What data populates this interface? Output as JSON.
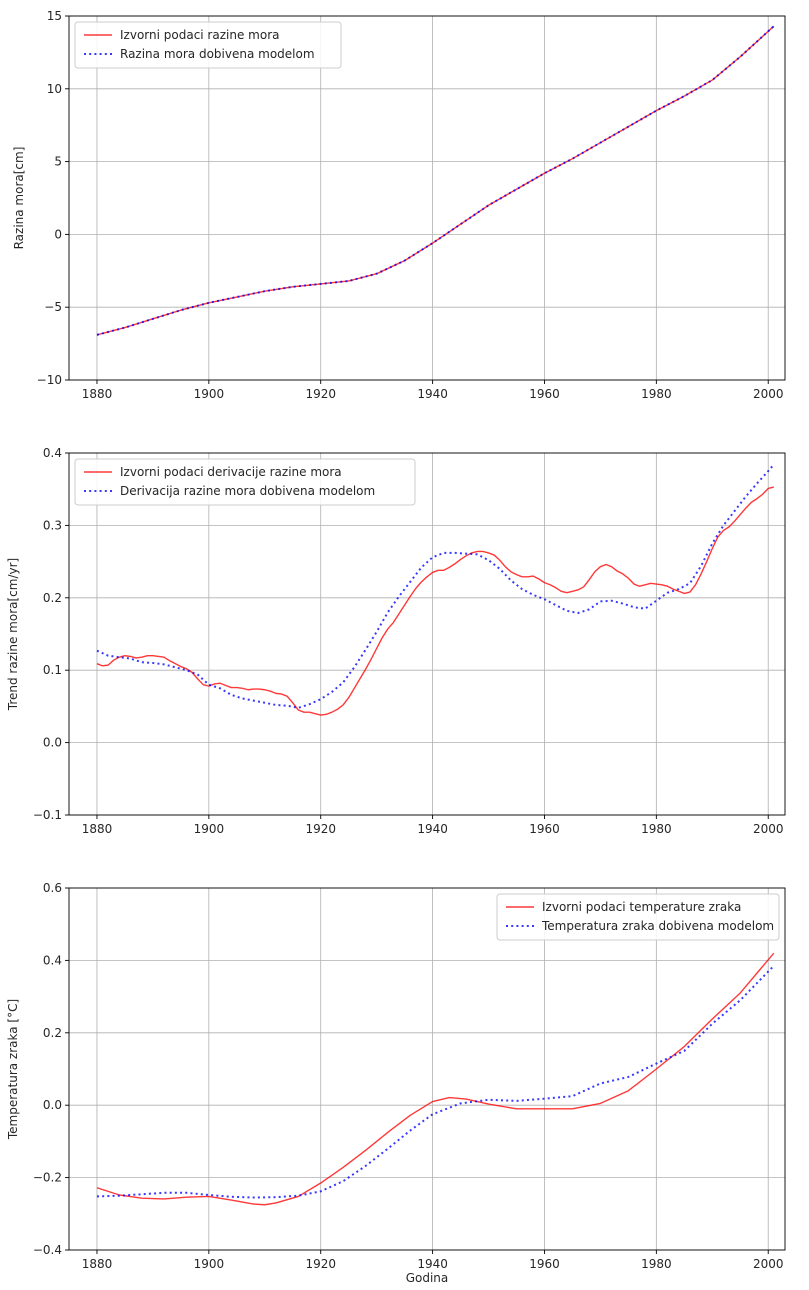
{
  "chart_data": [
    {
      "type": "line",
      "title": "",
      "xlabel": "",
      "ylabel": "Razina mora[cm]",
      "xlim": [
        1875,
        2003
      ],
      "ylim": [
        -10,
        15
      ],
      "xticks": [
        1880,
        1900,
        1920,
        1940,
        1960,
        1980,
        2000
      ],
      "yticks": [
        -10,
        -5,
        0,
        5,
        10,
        15
      ],
      "ytick_labels": [
        "−10",
        "−5",
        "0",
        "5",
        "10",
        "15"
      ],
      "grid": true,
      "legend": "top-left",
      "series": [
        {
          "name": "Izvorni podaci razine mora",
          "color": "#ff0000",
          "style": "solid",
          "x": [
            1880,
            1885,
            1890,
            1895,
            1900,
            1905,
            1910,
            1915,
            1920,
            1925,
            1930,
            1935,
            1940,
            1945,
            1950,
            1955,
            1960,
            1965,
            1970,
            1975,
            1980,
            1985,
            1990,
            1995,
            2001
          ],
          "y": [
            -6.9,
            -6.4,
            -5.8,
            -5.2,
            -4.7,
            -4.3,
            -3.9,
            -3.6,
            -3.4,
            -3.2,
            -2.7,
            -1.8,
            -0.6,
            0.7,
            2.0,
            3.1,
            4.2,
            5.2,
            6.3,
            7.4,
            8.5,
            9.5,
            10.6,
            12.2,
            14.3
          ]
        },
        {
          "name": "Razina mora dobivena modelom",
          "color": "#0000ff",
          "style": "dotted",
          "x": [
            1880,
            1885,
            1890,
            1895,
            1900,
            1905,
            1910,
            1915,
            1920,
            1925,
            1930,
            1935,
            1940,
            1945,
            1950,
            1955,
            1960,
            1965,
            1970,
            1975,
            1980,
            1985,
            1990,
            1995,
            2001
          ],
          "y": [
            -6.9,
            -6.4,
            -5.8,
            -5.2,
            -4.7,
            -4.3,
            -3.9,
            -3.6,
            -3.4,
            -3.2,
            -2.7,
            -1.8,
            -0.6,
            0.7,
            2.0,
            3.1,
            4.2,
            5.2,
            6.3,
            7.4,
            8.5,
            9.5,
            10.6,
            12.2,
            14.3
          ]
        }
      ]
    },
    {
      "type": "line",
      "title": "",
      "xlabel": "",
      "ylabel": "Trend razine mora[cm/yr]",
      "xlim": [
        1875,
        2003
      ],
      "ylim": [
        -0.1,
        0.4
      ],
      "xticks": [
        1880,
        1900,
        1920,
        1940,
        1960,
        1980,
        2000
      ],
      "yticks": [
        -0.1,
        0.0,
        0.1,
        0.2,
        0.3,
        0.4
      ],
      "ytick_labels": [
        "−0.1",
        "0.0",
        "0.1",
        "0.2",
        "0.3",
        "0.4"
      ],
      "grid": true,
      "legend": "top-left",
      "series": [
        {
          "name": "Izvorni podaci derivacije razine mora",
          "color": "#ff0000",
          "style": "solid",
          "x": [
            1880,
            1881,
            1882,
            1883,
            1884,
            1885,
            1886,
            1887,
            1888,
            1889,
            1890,
            1891,
            1892,
            1893,
            1894,
            1895,
            1896,
            1897,
            1898,
            1899,
            1900,
            1901,
            1902,
            1903,
            1904,
            1905,
            1906,
            1907,
            1908,
            1909,
            1910,
            1911,
            1912,
            1913,
            1914,
            1915,
            1916,
            1917,
            1918,
            1919,
            1920,
            1921,
            1922,
            1923,
            1924,
            1925,
            1926,
            1927,
            1928,
            1929,
            1930,
            1931,
            1932,
            1933,
            1934,
            1935,
            1936,
            1937,
            1938,
            1939,
            1940,
            1941,
            1942,
            1943,
            1944,
            1945,
            1946,
            1947,
            1948,
            1949,
            1950,
            1951,
            1952,
            1953,
            1954,
            1955,
            1956,
            1957,
            1958,
            1959,
            1960,
            1961,
            1962,
            1963,
            1964,
            1965,
            1966,
            1967,
            1968,
            1969,
            1970,
            1971,
            1972,
            1973,
            1974,
            1975,
            1976,
            1977,
            1978,
            1979,
            1980,
            1981,
            1982,
            1983,
            1984,
            1985,
            1986,
            1987,
            1988,
            1989,
            1990,
            1991,
            1992,
            1993,
            1994,
            1995,
            1996,
            1997,
            1998,
            1999,
            2000,
            2001
          ],
          "y": [
            0.109,
            0.106,
            0.107,
            0.114,
            0.118,
            0.12,
            0.119,
            0.117,
            0.118,
            0.12,
            0.12,
            0.119,
            0.118,
            0.113,
            0.109,
            0.105,
            0.102,
            0.097,
            0.088,
            0.08,
            0.078,
            0.081,
            0.082,
            0.079,
            0.076,
            0.076,
            0.075,
            0.073,
            0.074,
            0.074,
            0.073,
            0.071,
            0.068,
            0.067,
            0.064,
            0.055,
            0.045,
            0.042,
            0.042,
            0.04,
            0.038,
            0.039,
            0.042,
            0.046,
            0.052,
            0.062,
            0.075,
            0.088,
            0.101,
            0.115,
            0.13,
            0.145,
            0.157,
            0.166,
            0.178,
            0.19,
            0.202,
            0.213,
            0.222,
            0.229,
            0.235,
            0.238,
            0.238,
            0.242,
            0.247,
            0.253,
            0.258,
            0.262,
            0.264,
            0.264,
            0.262,
            0.259,
            0.252,
            0.243,
            0.236,
            0.232,
            0.229,
            0.229,
            0.23,
            0.226,
            0.221,
            0.218,
            0.214,
            0.209,
            0.207,
            0.209,
            0.211,
            0.215,
            0.225,
            0.236,
            0.243,
            0.246,
            0.243,
            0.237,
            0.233,
            0.227,
            0.219,
            0.216,
            0.218,
            0.22,
            0.219,
            0.218,
            0.216,
            0.212,
            0.209,
            0.206,
            0.208,
            0.218,
            0.233,
            0.25,
            0.268,
            0.284,
            0.293,
            0.298,
            0.306,
            0.315,
            0.324,
            0.332,
            0.337,
            0.343,
            0.351,
            0.353
          ]
        },
        {
          "name": "Derivacija razine mora dobivena modelom",
          "color": "#0000ff",
          "style": "dotted",
          "x": [
            1880,
            1882,
            1884,
            1886,
            1888,
            1890,
            1892,
            1894,
            1896,
            1898,
            1900,
            1902,
            1904,
            1906,
            1908,
            1910,
            1912,
            1914,
            1916,
            1918,
            1920,
            1922,
            1924,
            1926,
            1928,
            1930,
            1932,
            1934,
            1936,
            1938,
            1940,
            1942,
            1944,
            1946,
            1948,
            1950,
            1952,
            1954,
            1956,
            1958,
            1960,
            1962,
            1964,
            1966,
            1968,
            1970,
            1972,
            1974,
            1976,
            1978,
            1980,
            1982,
            1984,
            1986,
            1988,
            1990,
            1992,
            1994,
            1996,
            1998,
            2000,
            2001
          ],
          "y": [
            0.127,
            0.12,
            0.118,
            0.116,
            0.111,
            0.11,
            0.108,
            0.104,
            0.1,
            0.094,
            0.08,
            0.075,
            0.066,
            0.061,
            0.058,
            0.055,
            0.052,
            0.051,
            0.048,
            0.053,
            0.06,
            0.07,
            0.083,
            0.104,
            0.128,
            0.153,
            0.18,
            0.202,
            0.222,
            0.242,
            0.256,
            0.262,
            0.262,
            0.261,
            0.26,
            0.252,
            0.24,
            0.224,
            0.212,
            0.204,
            0.198,
            0.19,
            0.182,
            0.179,
            0.184,
            0.195,
            0.196,
            0.192,
            0.187,
            0.185,
            0.196,
            0.207,
            0.212,
            0.22,
            0.244,
            0.275,
            0.3,
            0.32,
            0.34,
            0.358,
            0.375,
            0.384
          ]
        }
      ]
    },
    {
      "type": "line",
      "title": "",
      "xlabel": "Godina",
      "ylabel": "Temperatura zraka [°C]",
      "xlim": [
        1875,
        2003
      ],
      "ylim": [
        -0.4,
        0.6
      ],
      "xticks": [
        1880,
        1900,
        1920,
        1940,
        1960,
        1980,
        2000
      ],
      "yticks": [
        -0.4,
        -0.2,
        0.0,
        0.2,
        0.4,
        0.6
      ],
      "ytick_labels": [
        "−0.4",
        "−0.2",
        "0.0",
        "0.2",
        "0.4",
        "0.6"
      ],
      "grid": true,
      "legend": "top-right",
      "series": [
        {
          "name": "Izvorni podaci temperature zraka",
          "color": "#ff0000",
          "style": "solid",
          "x": [
            1880,
            1884,
            1888,
            1892,
            1896,
            1900,
            1904,
            1908,
            1910,
            1912,
            1916,
            1920,
            1924,
            1928,
            1932,
            1936,
            1940,
            1943,
            1946,
            1950,
            1955,
            1960,
            1965,
            1970,
            1975,
            1980,
            1985,
            1990,
            1995,
            2001
          ],
          "y": [
            -0.228,
            -0.248,
            -0.257,
            -0.259,
            -0.254,
            -0.252,
            -0.262,
            -0.273,
            -0.275,
            -0.27,
            -0.252,
            -0.215,
            -0.172,
            -0.125,
            -0.075,
            -0.028,
            0.01,
            0.021,
            0.017,
            0.003,
            -0.01,
            -0.01,
            -0.01,
            0.005,
            0.04,
            0.1,
            0.162,
            0.238,
            0.31,
            0.42
          ]
        },
        {
          "name": "Temperatura zraka dobivena modelom",
          "color": "#0000ff",
          "style": "dotted",
          "x": [
            1880,
            1884,
            1888,
            1892,
            1896,
            1900,
            1904,
            1908,
            1912,
            1916,
            1920,
            1924,
            1928,
            1932,
            1936,
            1940,
            1945,
            1950,
            1955,
            1960,
            1965,
            1970,
            1975,
            1980,
            1985,
            1990,
            1995,
            2001
          ],
          "y": [
            -0.252,
            -0.25,
            -0.246,
            -0.242,
            -0.242,
            -0.248,
            -0.253,
            -0.255,
            -0.254,
            -0.25,
            -0.238,
            -0.21,
            -0.168,
            -0.12,
            -0.07,
            -0.025,
            0.005,
            0.015,
            0.012,
            0.018,
            0.025,
            0.06,
            0.078,
            0.115,
            0.15,
            0.225,
            0.29,
            0.385
          ]
        }
      ]
    }
  ]
}
